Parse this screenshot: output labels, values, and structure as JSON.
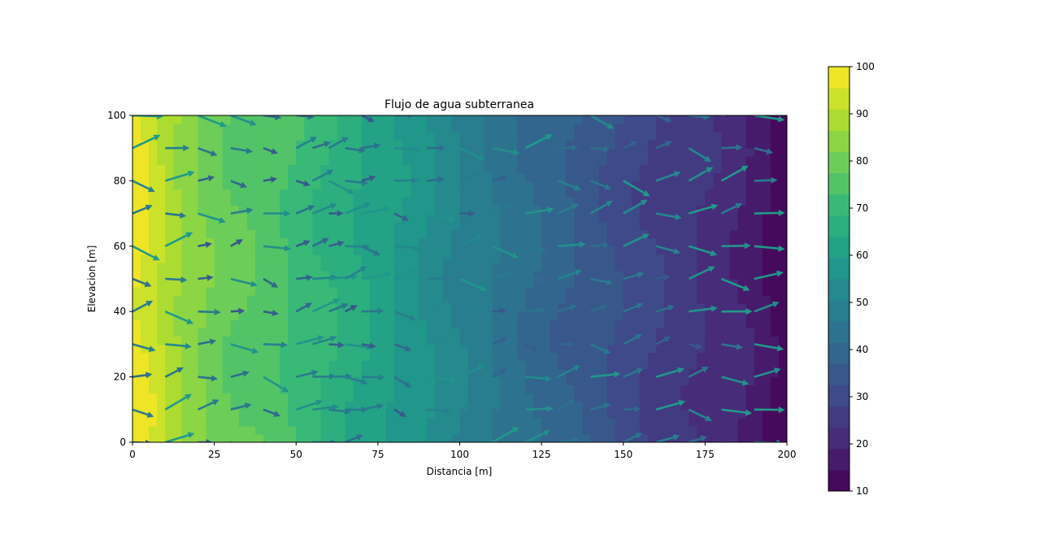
{
  "chart_data": {
    "type": "contour-quiver",
    "title": "Flujo de agua subterranea",
    "xlabel": "Distancia [m]",
    "ylabel": "Elevacion [m]",
    "xlim": [
      0,
      200
    ],
    "ylim": [
      0,
      100
    ],
    "xticks": [
      0,
      25,
      50,
      75,
      100,
      125,
      150,
      175,
      200
    ],
    "yticks": [
      0,
      20,
      40,
      60,
      80,
      100
    ],
    "field": {
      "description": "head decreasing left to right",
      "head_profile_x": [
        0,
        5,
        10,
        15,
        20,
        25,
        30,
        40,
        50,
        60,
        75,
        90,
        100,
        115,
        125,
        140,
        150,
        165,
        175,
        185,
        190,
        195,
        200
      ],
      "head_profile_values": [
        98,
        95,
        90,
        86,
        83,
        80,
        78,
        76,
        72,
        68,
        62,
        55,
        50,
        44,
        40,
        35,
        31,
        26,
        23,
        20,
        17,
        14,
        11
      ]
    },
    "quiver": {
      "x": [
        0,
        10,
        20,
        30,
        40,
        50,
        55,
        60,
        65,
        70,
        80,
        90,
        100,
        110,
        120,
        130,
        140,
        150,
        160,
        170,
        180,
        190,
        200
      ],
      "y": [
        0,
        10,
        20,
        30,
        40,
        50,
        60,
        70,
        80,
        90,
        100
      ]
    },
    "colorbar": {
      "min": 10,
      "max": 100,
      "ticks": [
        10,
        20,
        30,
        40,
        50,
        60,
        70,
        80,
        90,
        100
      ],
      "colormap": "viridis"
    },
    "colors": {
      "viridis_low": "#440154",
      "viridis_mid": "#21918c",
      "viridis_high": "#fde725"
    }
  }
}
